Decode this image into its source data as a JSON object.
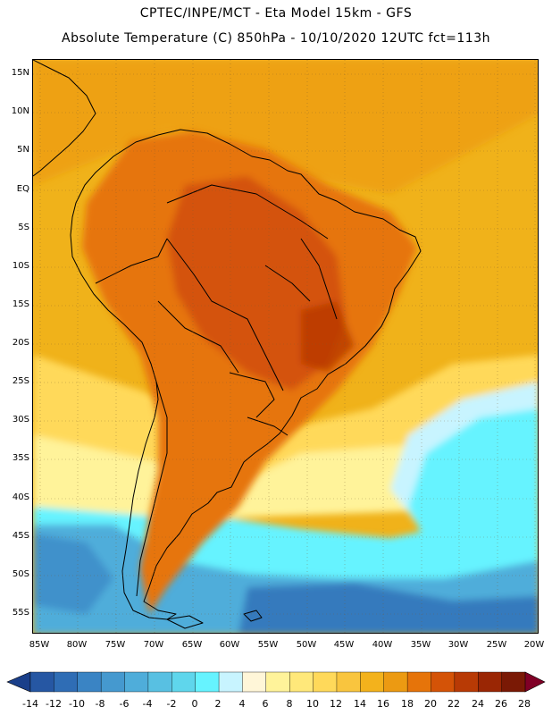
{
  "header": {
    "line1": "CPTEC/INPE/MCT -  Eta Model 15km - GFS",
    "line2": "Absolute Temperature (C) 850hPa - 10/10/2020 12UTC fct=113h"
  },
  "axes": {
    "lat_labels": [
      "15N",
      "10N",
      "5N",
      "EQ",
      "5S",
      "10S",
      "15S",
      "20S",
      "25S",
      "30S",
      "35S",
      "40S",
      "45S",
      "50S",
      "55S"
    ],
    "lon_labels": [
      "85W",
      "80W",
      "75W",
      "70W",
      "65W",
      "60W",
      "55W",
      "50W",
      "45W",
      "40W",
      "35W",
      "30W",
      "25W",
      "20W"
    ]
  },
  "colorbar": {
    "levels": [
      "-14",
      "-12",
      "-10",
      "-8",
      "-6",
      "-4",
      "-2",
      "0",
      "2",
      "4",
      "6",
      "8",
      "10",
      "12",
      "14",
      "16",
      "18",
      "20",
      "22",
      "24",
      "26",
      "28"
    ],
    "colors": [
      "#1a3f8a",
      "#2657a3",
      "#2f6db5",
      "#3a84c4",
      "#4599cf",
      "#4fadda",
      "#58c0e2",
      "#5fd6ec",
      "#66f3ff",
      "#c8f4ff",
      "#fff6d8",
      "#fff39a",
      "#ffe87a",
      "#ffd95a",
      "#f9c53e",
      "#f3b21c",
      "#ec9a12",
      "#e6740a",
      "#d45307",
      "#b83a05",
      "#9a2604",
      "#7a1905",
      "#800026"
    ]
  },
  "map": {
    "colors": {
      "ocean_warm": "#f0b21a",
      "land_hot": "#e06a0c",
      "land_very_hot": "#d05010",
      "cold_cyan": "#66f3ff",
      "cold_blue": "#4599cf",
      "deep_blue": "#2f6db5",
      "yellow": "#ffd95a",
      "pale": "#fff39a",
      "coast": "#000000"
    }
  }
}
